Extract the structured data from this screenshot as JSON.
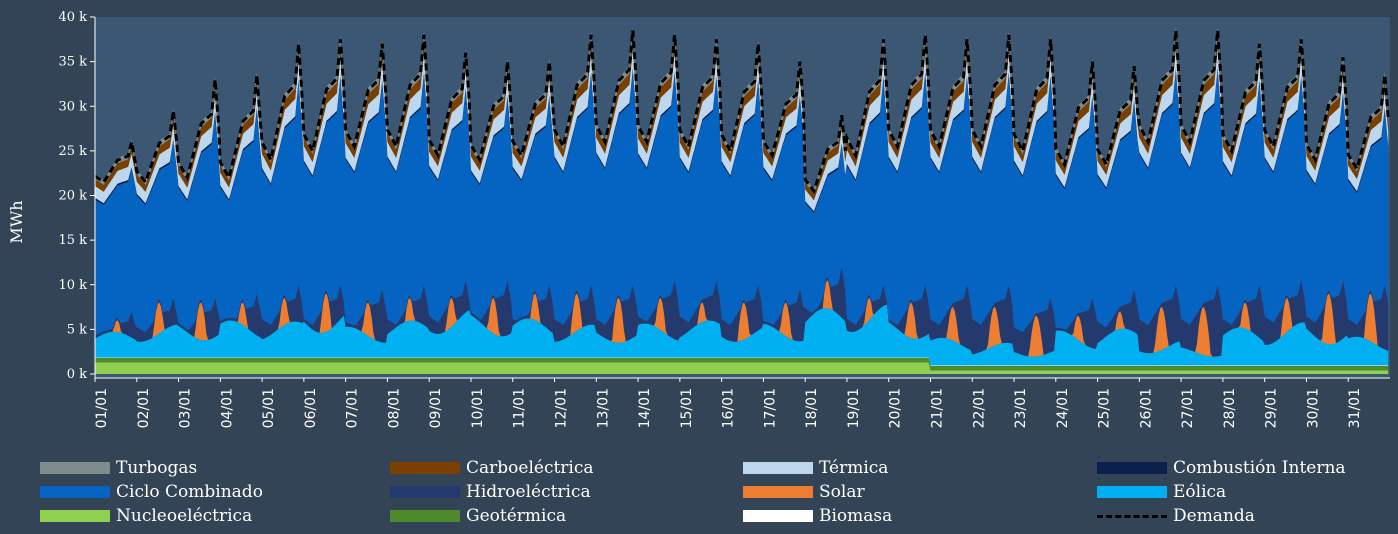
{
  "chart_data": {
    "type": "area",
    "title": "",
    "ylabel": "MWh",
    "ylim": [
      0,
      40000
    ],
    "yticks": [
      "0 k",
      "5 k",
      "10 k",
      "15 k",
      "20 k",
      "25 k",
      "30 k",
      "35 k",
      "40 k"
    ],
    "days": [
      "01/01",
      "02/01",
      "03/01",
      "04/01",
      "05/01",
      "06/01",
      "07/01",
      "08/01",
      "09/01",
      "10/01",
      "11/01",
      "12/01",
      "13/01",
      "14/01",
      "15/01",
      "16/01",
      "17/01",
      "18/01",
      "19/01",
      "20/01",
      "21/01",
      "22/01",
      "23/01",
      "24/01",
      "25/01",
      "26/01",
      "27/01",
      "28/01",
      "29/01",
      "30/01",
      "31/01"
    ],
    "series": [
      {
        "name": "Nucleoeléctrica",
        "color": "#8fd14f"
      },
      {
        "name": "Geotérmica",
        "color": "#4e8a2c"
      },
      {
        "name": "Biomasa",
        "color": "#ffffff"
      },
      {
        "name": "Eólica",
        "color": "#00b0f0"
      },
      {
        "name": "Solar",
        "color": "#ed7d31"
      },
      {
        "name": "Hidroeléctrica",
        "color": "#243a6e"
      },
      {
        "name": "Ciclo Combinado",
        "color": "#0563c1"
      },
      {
        "name": "Combustión Interna",
        "color": "#0c1f4d"
      },
      {
        "name": "Térmica",
        "color": "#bdd7ee"
      },
      {
        "name": "Carboeléctrica",
        "color": "#7b3f00"
      },
      {
        "name": "Turbogas",
        "color": "#7f8c8d"
      }
    ],
    "daily_peak_demand": [
      26000,
      29500,
      33000,
      33500,
      37000,
      37500,
      37000,
      38000,
      36000,
      35000,
      35000,
      38000,
      38500,
      38000,
      37500,
      37000,
      35000,
      29000,
      37500,
      38000,
      37500,
      38000,
      37500,
      35000,
      34500,
      38500,
      38500,
      37000,
      37500,
      35500,
      33500
    ],
    "daily_min_demand": [
      21500,
      21500,
      22000,
      22000,
      24000,
      25000,
      25500,
      25500,
      24500,
      24000,
      24500,
      25500,
      26000,
      26000,
      25500,
      25000,
      24500,
      20500,
      24500,
      25500,
      25500,
      25500,
      25000,
      23500,
      23500,
      26000,
      26000,
      25000,
      25500,
      24000,
      23000
    ],
    "daily_wind_avg": [
      2500,
      3200,
      3500,
      3600,
      3500,
      5000,
      3000,
      3600,
      4800,
      4300,
      3800,
      3200,
      3000,
      3300,
      3600,
      3200,
      3300,
      4800,
      5200,
      3800,
      2700,
      2200,
      1800,
      3400,
      3600,
      2500,
      1800,
      3700,
      4200,
      4300,
      2800
    ],
    "daily_solar_peak": [
      6000,
      8000,
      8000,
      8000,
      8500,
      9000,
      8000,
      8500,
      8500,
      8500,
      9000,
      9000,
      8500,
      8500,
      8000,
      8000,
      8000,
      10500,
      8500,
      8000,
      7500,
      7500,
      6500,
      6500,
      7000,
      7500,
      7500,
      8000,
      8500,
      9000,
      9000
    ],
    "daily_hydro_peak": [
      7000,
      8500,
      8500,
      9000,
      10000,
      10000,
      9500,
      10000,
      10500,
      10500,
      10000,
      10000,
      10000,
      10500,
      10500,
      10000,
      9500,
      12000,
      10000,
      10000,
      10000,
      10000,
      8500,
      8500,
      9500,
      10000,
      10000,
      10000,
      10500,
      10500,
      10000
    ],
    "nuclear_level": [
      1300,
      1300,
      1300,
      1300,
      1300,
      1300,
      1300,
      1300,
      1300,
      1300,
      1300,
      1300,
      1300,
      1300,
      1300,
      1300,
      1300,
      1300,
      1300,
      1300,
      400,
      400,
      400,
      400,
      400,
      400,
      400,
      400,
      400,
      400,
      400
    ],
    "geothermal_level": 500,
    "demand_name": "Demanda"
  },
  "legend": [
    {
      "label": "Turbogas",
      "color": "#7f8c8d",
      "type": "box"
    },
    {
      "label": "Carboeléctrica",
      "color": "#7b3f00",
      "type": "box"
    },
    {
      "label": "Térmica",
      "color": "#bdd7ee",
      "type": "box"
    },
    {
      "label": "Combustión Interna",
      "color": "#0c1f4d",
      "type": "box"
    },
    {
      "label": "Ciclo Combinado",
      "color": "#0563c1",
      "type": "box"
    },
    {
      "label": "Hidroeléctrica",
      "color": "#243a6e",
      "type": "box"
    },
    {
      "label": "Solar",
      "color": "#ed7d31",
      "type": "box"
    },
    {
      "label": "Eólica",
      "color": "#00b0f0",
      "type": "box"
    },
    {
      "label": "Nucleoeléctrica",
      "color": "#8fd14f",
      "type": "box"
    },
    {
      "label": "Geotérmica",
      "color": "#4e8a2c",
      "type": "box"
    },
    {
      "label": "Biomasa",
      "color": "#ffffff",
      "type": "box"
    },
    {
      "label": "Demanda",
      "color": "#000000",
      "type": "dash"
    }
  ]
}
